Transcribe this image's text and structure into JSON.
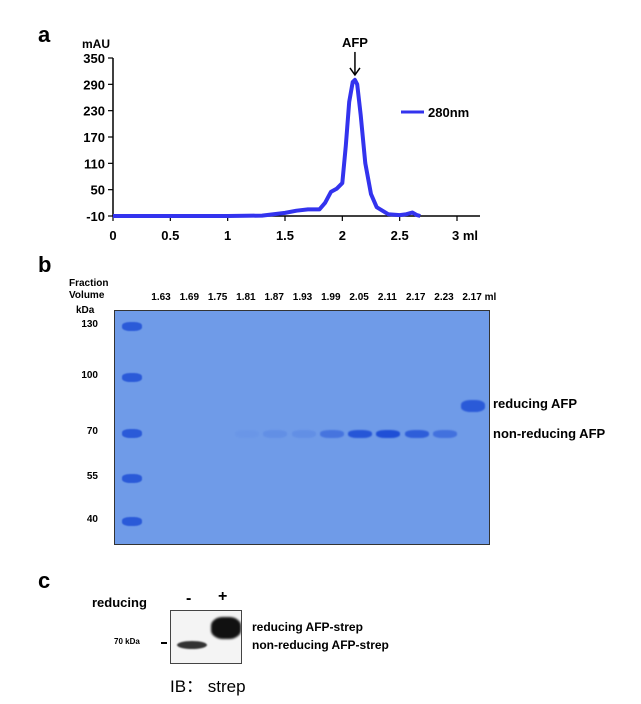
{
  "panels": {
    "a": "a",
    "b": "b",
    "c": "c"
  },
  "chart_data": {
    "type": "line",
    "ylabel": "mAU",
    "xlabel_unit": "ml",
    "ylim": [
      -10,
      350
    ],
    "xlim": [
      0,
      3
    ],
    "yticks": [
      "350",
      "290",
      "230",
      "170",
      "110",
      "50",
      "-10"
    ],
    "xticks": [
      "0",
      "0.5",
      "1",
      "1.5",
      "2",
      "2.5",
      "3 ml"
    ],
    "grid": false,
    "legend_position": "right",
    "annotation": "AFP",
    "series": [
      {
        "name": "280nm",
        "color": "#3333ee",
        "x": [
          0,
          0.5,
          1.0,
          1.3,
          1.5,
          1.6,
          1.7,
          1.8,
          1.85,
          1.9,
          1.95,
          2.0,
          2.03,
          2.06,
          2.09,
          2.11,
          2.13,
          2.16,
          2.2,
          2.25,
          2.3,
          2.4,
          2.5,
          2.56,
          2.61,
          2.65,
          2.68
        ],
        "y": [
          -10,
          -10,
          -10,
          -9,
          -3,
          2,
          5,
          5,
          20,
          45,
          52,
          65,
          150,
          250,
          295,
          300,
          290,
          220,
          110,
          40,
          10,
          -6,
          -8,
          -6,
          -2,
          -8,
          -10
        ]
      }
    ]
  },
  "gel": {
    "header_line1": "Fraction",
    "header_line2": "Volume",
    "unit_label": "kDa",
    "markers": [
      "130",
      "100",
      "70",
      "55",
      "40"
    ],
    "lanes": [
      {
        "label": "1.63",
        "band": "non-reducing",
        "intensity": 0
      },
      {
        "label": "1.69",
        "band": "non-reducing",
        "intensity": 0
      },
      {
        "label": "1.75",
        "band": "non-reducing",
        "intensity": 0
      },
      {
        "label": "1.81",
        "band": "non-reducing",
        "intensity": 0.05
      },
      {
        "label": "1.87",
        "band": "non-reducing",
        "intensity": 0.15
      },
      {
        "label": "1.93",
        "band": "non-reducing",
        "intensity": 0.15
      },
      {
        "label": "1.99",
        "band": "non-reducing",
        "intensity": 0.5
      },
      {
        "label": "2.05",
        "band": "non-reducing",
        "intensity": 0.9
      },
      {
        "label": "2.11",
        "band": "non-reducing",
        "intensity": 1.0
      },
      {
        "label": "2.17",
        "band": "non-reducing",
        "intensity": 0.8
      },
      {
        "label": "2.23",
        "band": "non-reducing",
        "intensity": 0.55
      },
      {
        "label": "2.17 ml",
        "band": "reducing",
        "intensity": 0.85
      }
    ],
    "band_labels": {
      "reducing": "reducing AFP",
      "non_reducing": "non-reducing AFP"
    },
    "colors": {
      "gel": "#6f9be8",
      "band": "#1f4fd6"
    }
  },
  "blot": {
    "condition_label": "reducing",
    "lanes": [
      "-",
      "+"
    ],
    "marker": "70 kDa",
    "band_labels": {
      "reducing": "reducing AFP-strep",
      "non_reducing": "non-reducing AFP-strep"
    },
    "antibody": "IB： strep"
  }
}
